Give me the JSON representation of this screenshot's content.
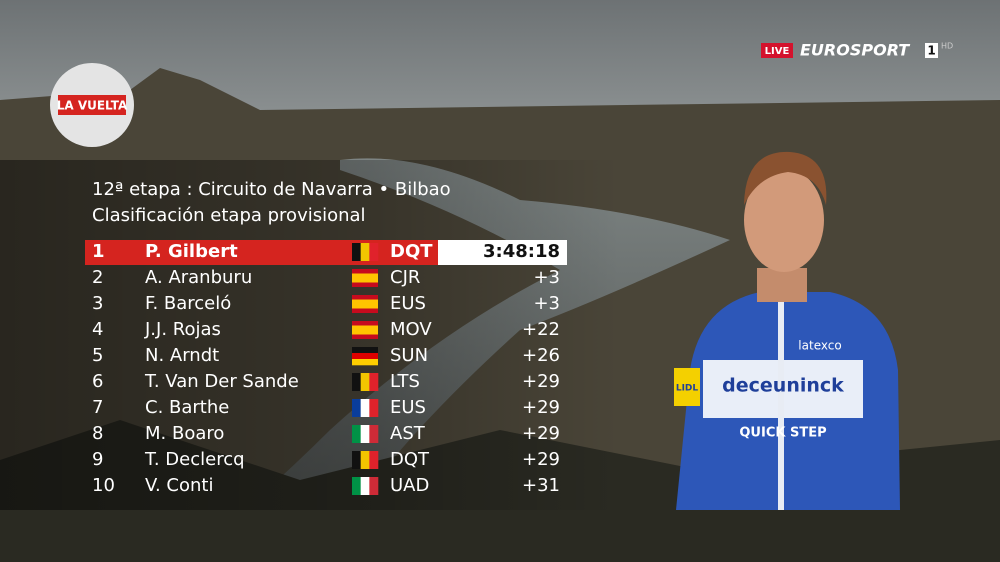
{
  "logo": "LA VUELTA",
  "broadcaster": {
    "live": "LIVE",
    "channel": "EUROSPORT",
    "number": "1",
    "hd": "HD"
  },
  "header": {
    "stage": "12ª etapa : Circuito de Navarra • Bilbao",
    "subtitle": "Clasificación etapa provisional"
  },
  "table": {
    "rows": [
      [
        1,
        "P. Gilbert",
        "DQT",
        "3:48:18"
      ],
      [
        2,
        "A. Aranburu",
        "CJR",
        "+3"
      ],
      [
        3,
        "F. Barceló",
        "EUS",
        "+3"
      ],
      [
        4,
        "J.J. Rojas",
        "MOV",
        "+22"
      ],
      [
        5,
        "N. Arndt",
        "SUN",
        "+26"
      ],
      [
        6,
        "T. Van Der Sande",
        "LTS",
        "+29"
      ],
      [
        7,
        "C. Barthe",
        "EUS",
        "+29"
      ],
      [
        8,
        "M. Boaro",
        "AST",
        "+29"
      ],
      [
        9,
        "T. Declercq",
        "DQT",
        "+29"
      ],
      [
        10,
        "V. Conti",
        "UAD",
        "+31"
      ]
    ]
  },
  "jersey": {
    "sponsor": "deceuninck",
    "team": "QUICK STEP",
    "sleeve": "latexco",
    "side": "LIDL"
  }
}
